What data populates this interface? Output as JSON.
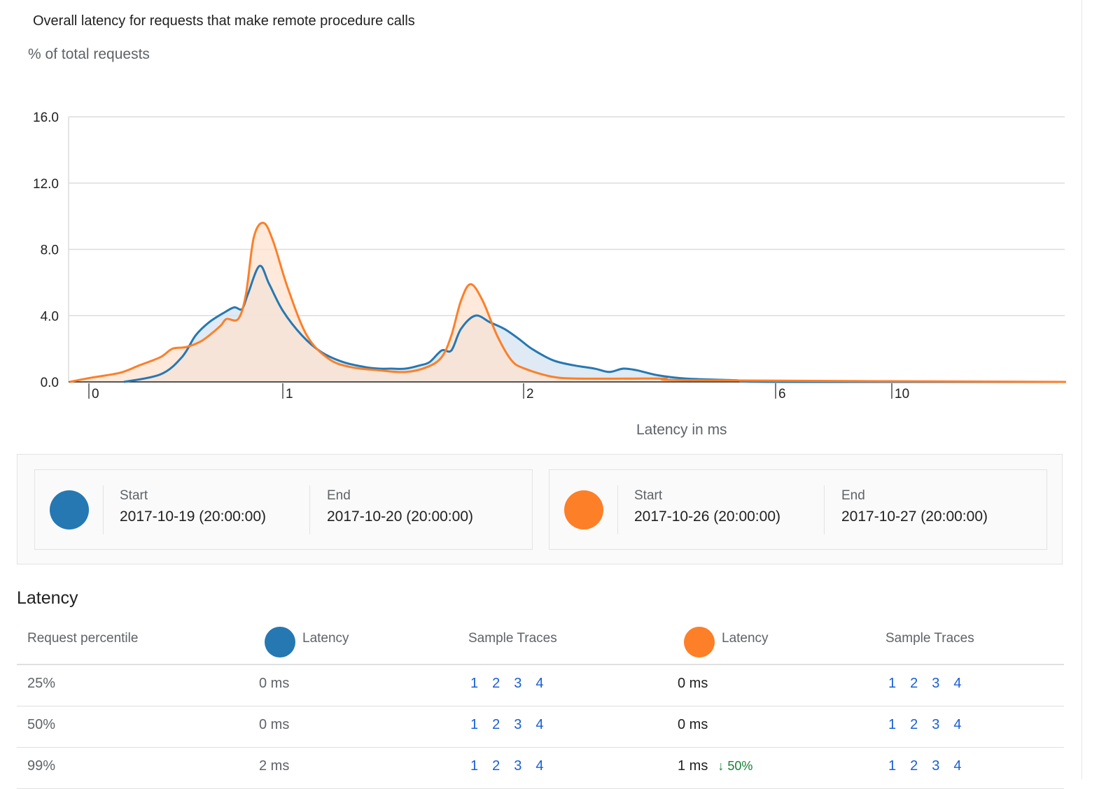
{
  "title": "Overall latency for requests that make remote procedure calls",
  "chart_data": {
    "type": "area",
    "title": "Overall latency for requests that make remote procedure calls",
    "ylabel": "% of total requests",
    "xlabel": "Latency in ms",
    "ylim": [
      0,
      16
    ],
    "yticks": [
      "0.0",
      "4.0",
      "8.0",
      "12.0",
      "16.0"
    ],
    "ytick_values": [
      0,
      4,
      8,
      12,
      16
    ],
    "xticks": [
      "0",
      "1",
      "2",
      "6",
      "10"
    ],
    "xtick_values": [
      0,
      1,
      2,
      6,
      10
    ],
    "x_scale": "non-linear (piecewise)",
    "grid": true,
    "series": [
      {
        "color": "#2678b2",
        "fill": "#d5e3f0",
        "points": [
          [
            0.18,
            0
          ],
          [
            0.37,
            0.46
          ],
          [
            0.48,
            1.5
          ],
          [
            0.55,
            2.8
          ],
          [
            0.62,
            3.6
          ],
          [
            0.7,
            4.2
          ],
          [
            0.75,
            4.5
          ],
          [
            0.79,
            4.4
          ],
          [
            0.82,
            5.3
          ],
          [
            0.88,
            7.0
          ],
          [
            0.93,
            5.9
          ],
          [
            1.0,
            4.3
          ],
          [
            1.08,
            2.8
          ],
          [
            1.16,
            1.8
          ],
          [
            1.25,
            1.2
          ],
          [
            1.34,
            0.9
          ],
          [
            1.4,
            0.8
          ],
          [
            1.45,
            0.8
          ],
          [
            1.51,
            0.8
          ],
          [
            1.57,
            1.0
          ],
          [
            1.61,
            1.2
          ],
          [
            1.66,
            1.9
          ],
          [
            1.7,
            1.9
          ],
          [
            1.74,
            3.2
          ],
          [
            1.8,
            4.0
          ],
          [
            1.86,
            3.6
          ],
          [
            1.92,
            3.2
          ],
          [
            1.98,
            2.6
          ],
          [
            2.13,
            2.0
          ],
          [
            2.47,
            1.3
          ],
          [
            2.8,
            1.0
          ],
          [
            3.13,
            0.8
          ],
          [
            3.36,
            0.6
          ],
          [
            3.58,
            0.8
          ],
          [
            3.8,
            0.7
          ],
          [
            4.13,
            0.4
          ],
          [
            4.58,
            0.2
          ],
          [
            5.36,
            0.1
          ],
          [
            6,
            0
          ],
          [
            16,
            0
          ]
        ]
      },
      {
        "color": "#fd7f28",
        "fill": "#fde2cf",
        "points": [
          [
            -0.1,
            0
          ],
          [
            0.01,
            0.25
          ],
          [
            0.16,
            0.55
          ],
          [
            0.26,
            1.0
          ],
          [
            0.37,
            1.5
          ],
          [
            0.43,
            2.0
          ],
          [
            0.5,
            2.1
          ],
          [
            0.57,
            2.4
          ],
          [
            0.62,
            2.8
          ],
          [
            0.68,
            3.4
          ],
          [
            0.71,
            3.8
          ],
          [
            0.77,
            3.8
          ],
          [
            0.81,
            5.3
          ],
          [
            0.85,
            8.7
          ],
          [
            0.9,
            9.6
          ],
          [
            0.95,
            8.5
          ],
          [
            1.02,
            5.7
          ],
          [
            1.1,
            2.8
          ],
          [
            1.19,
            1.4
          ],
          [
            1.28,
            0.9
          ],
          [
            1.4,
            0.7
          ],
          [
            1.51,
            0.6
          ],
          [
            1.6,
            0.9
          ],
          [
            1.66,
            1.5
          ],
          [
            1.7,
            2.8
          ],
          [
            1.74,
            4.9
          ],
          [
            1.78,
            5.9
          ],
          [
            1.83,
            4.9
          ],
          [
            1.89,
            2.8
          ],
          [
            1.95,
            1.3
          ],
          [
            2.02,
            0.8
          ],
          [
            2.47,
            0.3
          ],
          [
            2.91,
            0.2
          ],
          [
            3.69,
            0.2
          ],
          [
            4.24,
            0.2
          ],
          [
            4.8,
            0.1
          ],
          [
            16,
            0
          ]
        ]
      }
    ]
  },
  "legend": [
    {
      "color": "#2678b2",
      "start_label": "Start",
      "start": "2017-10-19 (20:00:00)",
      "end_label": "End",
      "end": "2017-10-20 (20:00:00)"
    },
    {
      "color": "#fd7f28",
      "start_label": "Start",
      "start": "2017-10-26 (20:00:00)",
      "end_label": "End",
      "end": "2017-10-27 (20:00:00)"
    }
  ],
  "latency": {
    "title": "Latency",
    "headers": {
      "percentile": "Request percentile",
      "latency_a": "Latency",
      "traces_a": "Sample Traces",
      "latency_b": "Latency",
      "traces_b": "Sample Traces"
    },
    "rows": [
      {
        "percentile": "25%",
        "latency_a": "0 ms",
        "traces_a": [
          "1",
          "2",
          "3",
          "4"
        ],
        "latency_b": "0 ms",
        "delta": "",
        "traces_b": [
          "1",
          "2",
          "3",
          "4"
        ]
      },
      {
        "percentile": "50%",
        "latency_a": "0 ms",
        "traces_a": [
          "1",
          "2",
          "3",
          "4"
        ],
        "latency_b": "0 ms",
        "delta": "",
        "traces_b": [
          "1",
          "2",
          "3",
          "4"
        ]
      },
      {
        "percentile": "99%",
        "latency_a": "2 ms",
        "traces_a": [
          "1",
          "2",
          "3",
          "4"
        ],
        "latency_b": "1 ms",
        "delta": "↓ 50%",
        "traces_b": [
          "1",
          "2",
          "3",
          "4"
        ]
      }
    ]
  }
}
